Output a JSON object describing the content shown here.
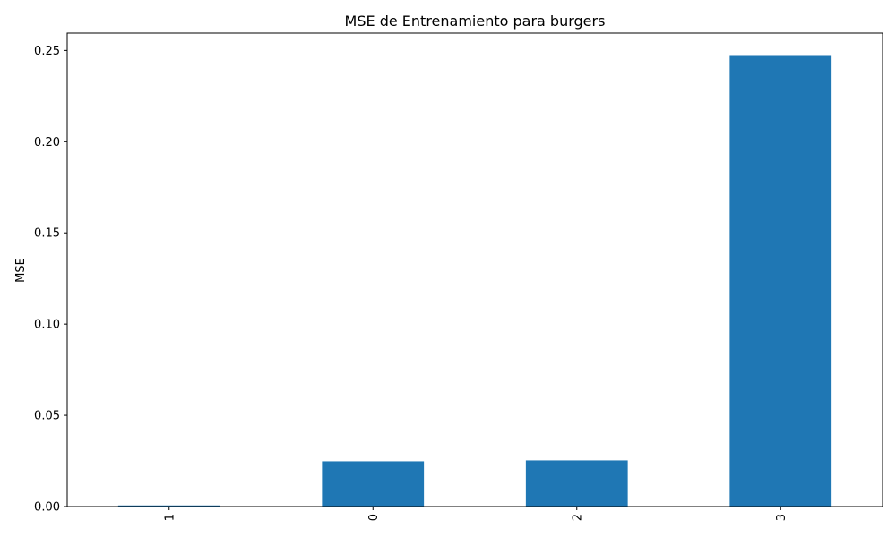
{
  "chart_data": {
    "type": "bar",
    "title": "MSE de Entrenamiento para burgers",
    "xlabel": "",
    "ylabel": "MSE",
    "categories": [
      "1",
      "0",
      "2",
      "3"
    ],
    "values": [
      0.0006,
      0.0248,
      0.0253,
      0.247
    ],
    "ylim": [
      0,
      0.2595
    ],
    "yticks": [
      0,
      0.05,
      0.1,
      0.15,
      0.2,
      0.25
    ],
    "ytick_labels": [
      "0.00",
      "0.05",
      "0.10",
      "0.15",
      "0.20",
      "0.25"
    ],
    "xtick_rotation": "vertical",
    "bar_color": "#1f77b4",
    "grid": false,
    "legend": "none"
  }
}
